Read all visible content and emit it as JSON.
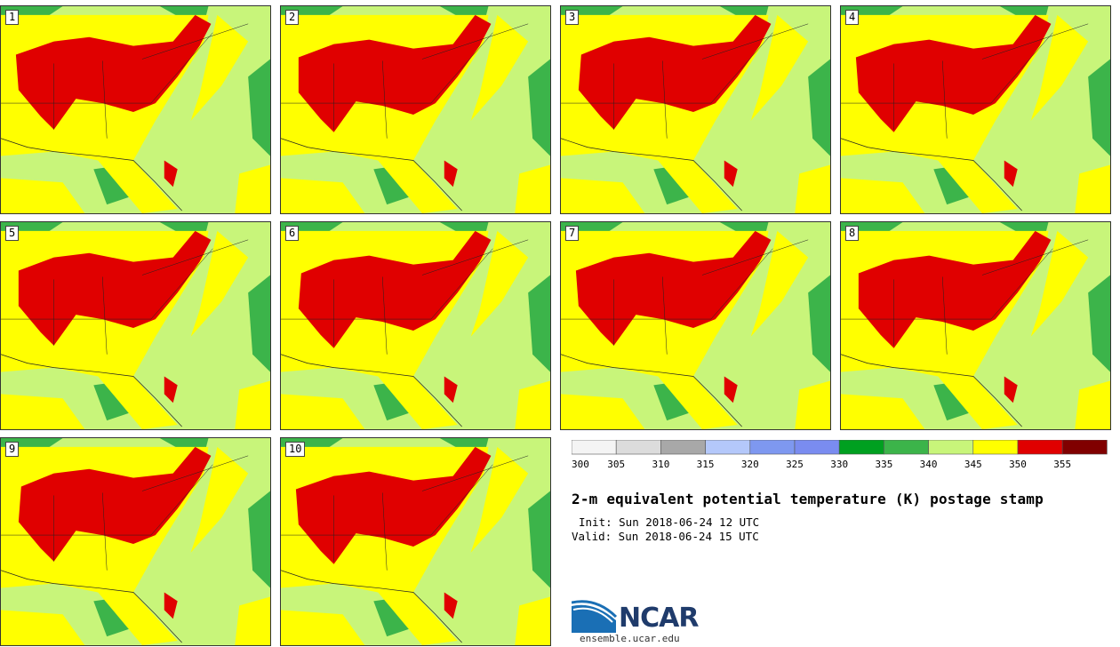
{
  "panels": [
    {
      "label": "1"
    },
    {
      "label": "2"
    },
    {
      "label": "3"
    },
    {
      "label": "4"
    },
    {
      "label": "5"
    },
    {
      "label": "6"
    },
    {
      "label": "7"
    },
    {
      "label": "8"
    },
    {
      "label": "9"
    },
    {
      "label": "10"
    }
  ],
  "colorbar": {
    "ticks": [
      "300",
      "305",
      "310",
      "315",
      "320",
      "325",
      "330",
      "335",
      "340",
      "345",
      "350",
      "355"
    ],
    "colors": [
      "#f4f4f4",
      "#dcdcdc",
      "#a8a8a8",
      "#b4c8fa",
      "#7e98f0",
      "#7a8cf0",
      "#00a020",
      "#3cb44a",
      "#c8f57a",
      "#ffff00",
      "#e00000",
      "#800000"
    ]
  },
  "title": "2-m equivalent potential temperature (K) postage stamp",
  "init": "Init: Sun 2018-06-24 12 UTC",
  "valid": "Valid: Sun 2018-06-24 15 UTC",
  "logo": {
    "name": "NCAR",
    "url": "ensemble.ucar.edu"
  }
}
